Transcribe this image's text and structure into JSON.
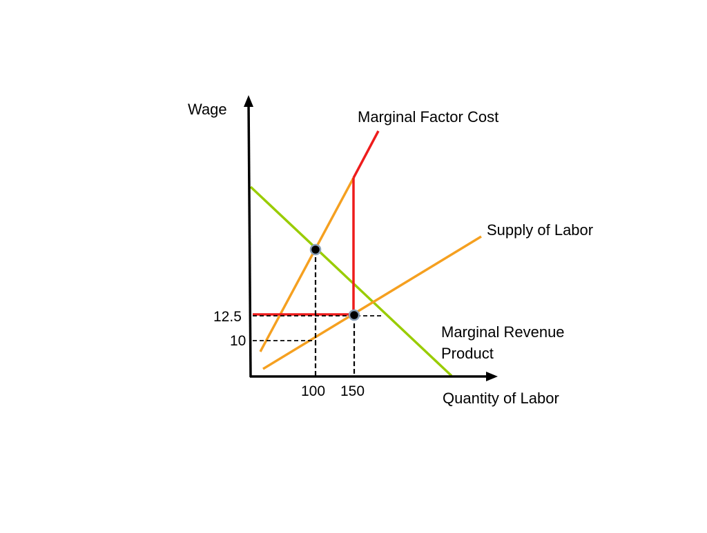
{
  "diagram": {
    "axes": {
      "y_label": "Wage",
      "x_label": "Quantity of Labor"
    },
    "labels": {
      "mfc": "Marginal Factor Cost",
      "supply": "Supply of Labor",
      "mrp_line1": "Marginal Revenue",
      "mrp_line2": "Product"
    },
    "ticks": {
      "y": [
        "12.5",
        "10"
      ],
      "x": [
        "100",
        "150"
      ]
    },
    "colors": {
      "mfc": "#ee1c1c",
      "supply": "#f5a020",
      "mrp": "#99cc00",
      "axis": "#000000",
      "point": "#000000",
      "point_ring": "#8aa0b8"
    }
  }
}
